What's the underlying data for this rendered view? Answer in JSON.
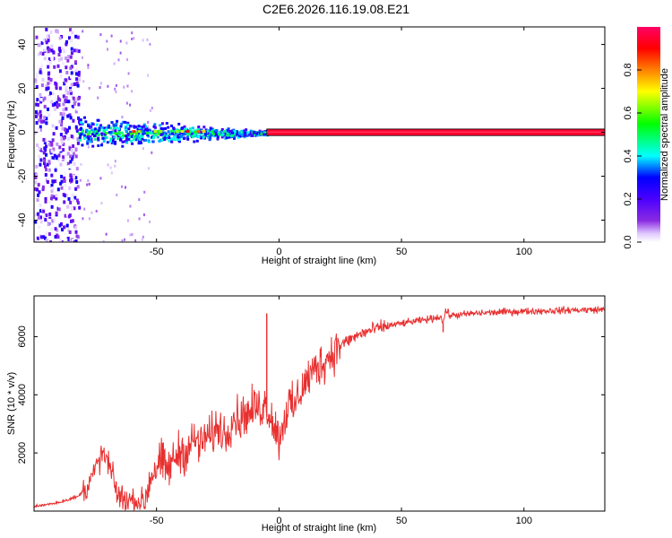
{
  "figure": {
    "title": "C2E6.2026.116.19.08.E21"
  },
  "chart_data": [
    {
      "type": "heatmap",
      "title": "",
      "xlabel": "Height of straight line (km)",
      "ylabel": "Frequency (Hz)",
      "xlim": [
        -100,
        133
      ],
      "ylim": [
        -50,
        48
      ],
      "x_ticks": [
        -50,
        0,
        50,
        100
      ],
      "y_ticks": [
        -40,
        -20,
        0,
        20,
        40
      ],
      "colorbar": {
        "label": "Normalized spectral amplitude",
        "range": [
          0,
          1
        ],
        "ticks": [
          0.0,
          0.2,
          0.4,
          0.6,
          0.8
        ],
        "colormap": [
          "#ffffff",
          "#e0c8ff",
          "#8a2be2",
          "#4b00ff",
          "#0000ff",
          "#00ffff",
          "#00ff00",
          "#ffff00",
          "#ff8000",
          "#ff0000",
          "#ff0066"
        ]
      },
      "regions": [
        {
          "x_range": [
            -100,
            -82
          ],
          "freq_range": [
            -50,
            48
          ],
          "amplitude": 0.15,
          "pattern": "broadband noise"
        },
        {
          "x_range": [
            -82,
            -5
          ],
          "freq_range": [
            -9,
            7
          ],
          "amplitude_range": [
            0.2,
            0.6
          ],
          "pattern": "narrowing band centred near 0 Hz"
        },
        {
          "x_range": [
            -60,
            -28
          ],
          "freq_range": [
            -1,
            1
          ],
          "amplitude_range": [
            0.6,
            0.9
          ],
          "pattern": "intermittent core"
        },
        {
          "x_range": [
            -5,
            133
          ],
          "freq_range": [
            -1.5,
            1.5
          ],
          "amplitude": 0.95,
          "pattern": "steady line at 0 Hz"
        }
      ]
    },
    {
      "type": "line",
      "title": "",
      "xlabel": "Height of straight line (km)",
      "ylabel": "SNR (10 * v/v)",
      "xlim": [
        -100,
        133
      ],
      "ylim": [
        0,
        7400
      ],
      "x_ticks": [
        -50,
        0,
        50,
        100
      ],
      "y_ticks": [
        2000,
        4000,
        6000
      ],
      "color": "#e83030",
      "series": [
        {
          "x": [
            -100,
            -90,
            -82,
            -78,
            -75,
            -72,
            -70,
            -68,
            -66,
            -63,
            -60,
            -55,
            -52,
            -50,
            -48,
            -46,
            -44,
            -42,
            -40,
            -38,
            -36,
            -34,
            -32,
            -30,
            -28,
            -26,
            -24,
            -22,
            -20,
            -18,
            -16,
            -14,
            -12,
            -10,
            -8,
            -6,
            -4,
            -2,
            0,
            2,
            4,
            6,
            8,
            10,
            12,
            14,
            16,
            18,
            20,
            22,
            24,
            26,
            28,
            30,
            35,
            40,
            45,
            50,
            55,
            60,
            64,
            66,
            67,
            68,
            70,
            75,
            80,
            85,
            90,
            95,
            100,
            105,
            110,
            115,
            120,
            125,
            133
          ],
          "y": [
            150,
            300,
            500,
            900,
            1400,
            2000,
            1700,
            1200,
            600,
            350,
            400,
            300,
            1300,
            1500,
            1700,
            1400,
            1600,
            1900,
            2100,
            2000,
            2300,
            2500,
            2200,
            2600,
            2500,
            2800,
            2900,
            2600,
            3000,
            3300,
            3100,
            3400,
            3300,
            3600,
            3500,
            3700,
            3400,
            3000,
            2500,
            3100,
            3700,
            3500,
            4000,
            4300,
            4600,
            4800,
            5000,
            5100,
            5300,
            5450,
            5650,
            5750,
            5850,
            5950,
            6150,
            6280,
            6380,
            6450,
            6520,
            6580,
            6650,
            6700,
            6450,
            6900,
            6720,
            6760,
            6800,
            6820,
            6840,
            6860,
            6870,
            6880,
            6890,
            6900,
            6910,
            6920,
            6930
          ],
          "annotations": [
            {
              "x": -5,
              "y": 6800,
              "note": "spike"
            },
            {
              "x": 67,
              "y": 6450,
              "note": "dip"
            }
          ]
        }
      ]
    }
  ]
}
